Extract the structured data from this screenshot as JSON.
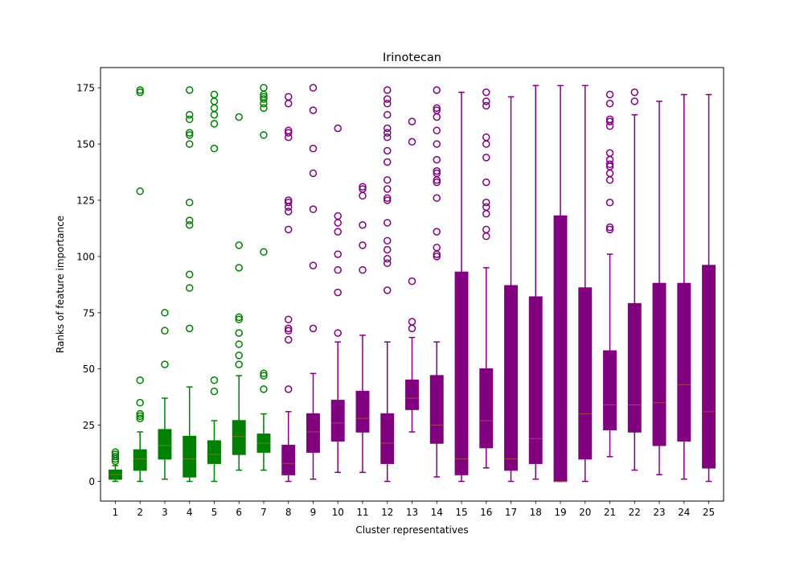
{
  "chart_data": {
    "type": "boxplot",
    "title": "Irinotecan",
    "xlabel": "Cluster representatives",
    "ylabel": "Ranks of feature importance",
    "xlim": [
      0.4,
      25.6
    ],
    "ylim": [
      -8.75,
      184
    ],
    "yticks": [
      0,
      25,
      50,
      75,
      100,
      125,
      150,
      175
    ],
    "ytick_labels": [
      "0",
      "25",
      "50",
      "75",
      "100",
      "125",
      "150",
      "175"
    ],
    "colors": {
      "group_a": "#008000",
      "group_b": "#800080"
    },
    "boxes": [
      {
        "label": "1",
        "color_group": "group_a",
        "whislo": 0,
        "q1": 1,
        "med": 3,
        "q3": 5,
        "whishi": 7,
        "fliers": [
          9,
          10,
          11,
          12,
          13
        ]
      },
      {
        "label": "2",
        "color_group": "group_a",
        "whislo": 0,
        "q1": 5,
        "med": 10,
        "q3": 14,
        "whishi": 22,
        "fliers": [
          28,
          29,
          30,
          35,
          45,
          129,
          173,
          174
        ]
      },
      {
        "label": "3",
        "color_group": "group_a",
        "whislo": 1,
        "q1": 10,
        "med": 16,
        "q3": 23,
        "whishi": 37,
        "fliers": [
          52,
          67,
          75
        ]
      },
      {
        "label": "4",
        "color_group": "group_a",
        "whislo": 0,
        "q1": 2,
        "med": 10,
        "q3": 20,
        "whishi": 42,
        "fliers": [
          68,
          86,
          92,
          114,
          116,
          124,
          150,
          154,
          155,
          161,
          163,
          174
        ]
      },
      {
        "label": "5",
        "color_group": "group_a",
        "whislo": 0,
        "q1": 8,
        "med": 12,
        "q3": 18,
        "whishi": 27,
        "fliers": [
          40,
          45,
          148,
          159,
          163,
          166,
          169,
          172
        ]
      },
      {
        "label": "6",
        "color_group": "group_a",
        "whislo": 5,
        "q1": 12,
        "med": 20,
        "q3": 27,
        "whishi": 47,
        "fliers": [
          52,
          56,
          61,
          66,
          72,
          73,
          95,
          105,
          162
        ]
      },
      {
        "label": "7",
        "color_group": "group_a",
        "whislo": 5,
        "q1": 13,
        "med": 17,
        "q3": 21,
        "whishi": 30,
        "fliers": [
          41,
          47,
          48,
          102,
          154,
          166,
          168,
          170,
          171,
          172,
          175
        ]
      },
      {
        "label": "8",
        "color_group": "group_b",
        "whislo": 0,
        "q1": 3,
        "med": 8,
        "q3": 16,
        "whishi": 31,
        "fliers": [
          41,
          63,
          67,
          68,
          72,
          112,
          120,
          122,
          124,
          125,
          153,
          155,
          156,
          168,
          171
        ]
      },
      {
        "label": "9",
        "color_group": "group_b",
        "whislo": 1,
        "q1": 13,
        "med": 22,
        "q3": 30,
        "whishi": 48,
        "fliers": [
          68,
          96,
          121,
          137,
          148,
          165,
          175
        ]
      },
      {
        "label": "10",
        "color_group": "group_b",
        "whislo": 4,
        "q1": 18,
        "med": 26,
        "q3": 36,
        "whishi": 62,
        "fliers": [
          66,
          84,
          94,
          101,
          111,
          115,
          118,
          157
        ]
      },
      {
        "label": "11",
        "color_group": "group_b",
        "whislo": 4,
        "q1": 22,
        "med": 28,
        "q3": 40,
        "whishi": 65,
        "fliers": [
          94,
          105,
          114,
          127,
          130,
          131
        ]
      },
      {
        "label": "12",
        "color_group": "group_b",
        "whislo": 0,
        "q1": 8,
        "med": 17,
        "q3": 30,
        "whishi": 62,
        "fliers": [
          85,
          97,
          99,
          103,
          107,
          115,
          125,
          126,
          130,
          134,
          142,
          147,
          153,
          155,
          157,
          163,
          168,
          170,
          174
        ]
      },
      {
        "label": "13",
        "color_group": "group_b",
        "whislo": 22,
        "q1": 32,
        "med": 37,
        "q3": 45,
        "whishi": 64,
        "fliers": [
          68,
          71,
          89,
          151,
          160
        ]
      },
      {
        "label": "14",
        "color_group": "group_b",
        "whislo": 2,
        "q1": 17,
        "med": 25,
        "q3": 47,
        "whishi": 62,
        "fliers": [
          100,
          101,
          104,
          111,
          126,
          133,
          134,
          137,
          138,
          143,
          150,
          156,
          162,
          165,
          166,
          174
        ]
      },
      {
        "label": "15",
        "color_group": "group_b",
        "whislo": 0,
        "q1": 3,
        "med": 10,
        "q3": 93,
        "whishi": 173,
        "fliers": []
      },
      {
        "label": "16",
        "color_group": "group_b",
        "whislo": 6,
        "q1": 15,
        "med": 27,
        "q3": 50,
        "whishi": 95,
        "fliers": [
          109,
          112,
          119,
          122,
          124,
          133,
          144,
          150,
          153,
          167,
          169,
          173
        ]
      },
      {
        "label": "17",
        "color_group": "group_b",
        "whislo": 0,
        "q1": 5,
        "med": 10,
        "q3": 87,
        "whishi": 171,
        "fliers": []
      },
      {
        "label": "18",
        "color_group": "group_b",
        "whislo": 1,
        "q1": 8,
        "med": 19,
        "q3": 82,
        "whishi": 176,
        "fliers": []
      },
      {
        "label": "19",
        "color_group": "group_b",
        "whislo": 0,
        "q1": 0,
        "med": 0,
        "q3": 118,
        "whishi": 176,
        "fliers": []
      },
      {
        "label": "20",
        "color_group": "group_b",
        "whislo": 0,
        "q1": 10,
        "med": 30,
        "q3": 86,
        "whishi": 176,
        "fliers": []
      },
      {
        "label": "21",
        "color_group": "group_b",
        "whislo": 11,
        "q1": 23,
        "med": 34,
        "q3": 58,
        "whishi": 101,
        "fliers": [
          112,
          113,
          124,
          134,
          137,
          140,
          141,
          143,
          146,
          158,
          160,
          161,
          168,
          172
        ]
      },
      {
        "label": "22",
        "color_group": "group_b",
        "whislo": 5,
        "q1": 22,
        "med": 34,
        "q3": 79,
        "whishi": 163,
        "fliers": [
          169,
          173
        ]
      },
      {
        "label": "23",
        "color_group": "group_b",
        "whislo": 3,
        "q1": 16,
        "med": 35,
        "q3": 88,
        "whishi": 169,
        "fliers": []
      },
      {
        "label": "24",
        "color_group": "group_b",
        "whislo": 1,
        "q1": 18,
        "med": 43,
        "q3": 88,
        "whishi": 172,
        "fliers": []
      },
      {
        "label": "25",
        "color_group": "group_b",
        "whislo": 0,
        "q1": 6,
        "med": 31,
        "q3": 96,
        "whishi": 172,
        "fliers": []
      }
    ]
  }
}
